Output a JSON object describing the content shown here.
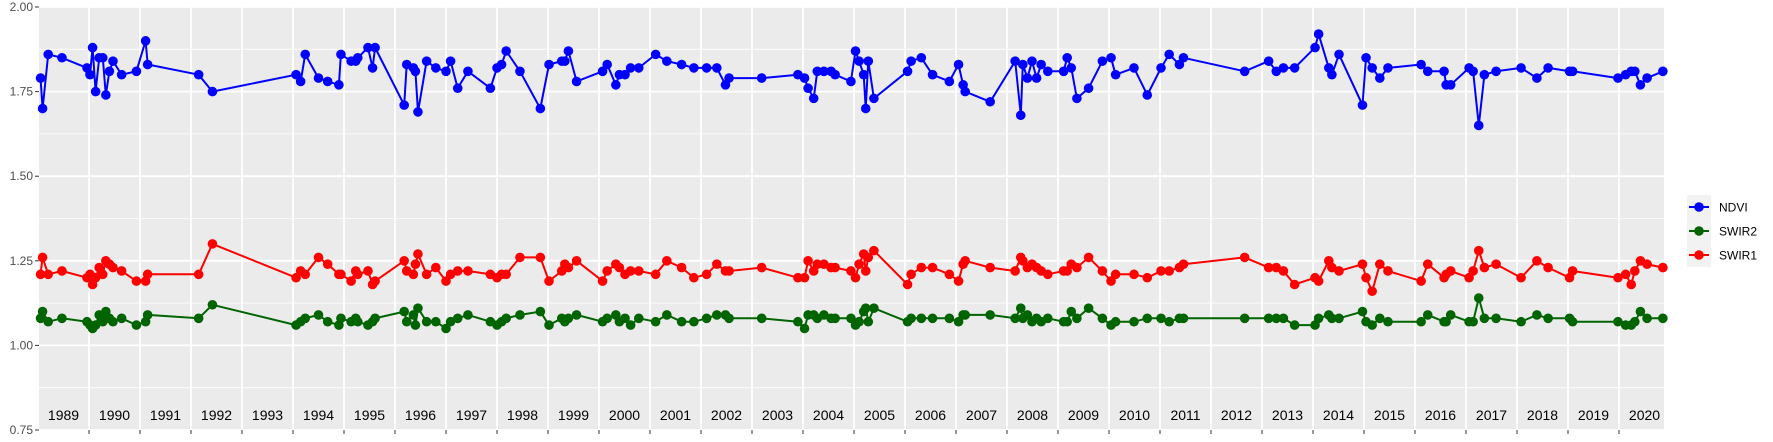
{
  "chart_data": {
    "type": "line",
    "title": "",
    "xlabel": "",
    "ylabel": "",
    "ylim": [
      0.75,
      2.0
    ],
    "xlim": [
      1989.02,
      2020.88
    ],
    "yticks": [
      "0.75",
      "1.00",
      "1.25",
      "1.50",
      "1.75",
      "2.00"
    ],
    "ytick_values": [
      0.75,
      1.0,
      1.25,
      1.5,
      1.75,
      2.0
    ],
    "year_labels": [
      "1989",
      "1990",
      "1991",
      "1992",
      "1993",
      "1994",
      "1995",
      "1996",
      "1997",
      "1998",
      "1999",
      "2000",
      "2001",
      "2002",
      "2003",
      "2004",
      "2005",
      "2006",
      "2007",
      "2008",
      "2009",
      "2010",
      "2011",
      "2012",
      "2013",
      "2014",
      "2015",
      "2016",
      "2017",
      "2018",
      "2019",
      "2020"
    ],
    "grid": true,
    "legend_position": "right",
    "series": [
      {
        "name": "NDVI",
        "color": "#0000ff",
        "column": 1
      },
      {
        "name": "SWIR2",
        "color": "#006400",
        "column": 2
      },
      {
        "name": "SWIR1",
        "color": "#ff0000",
        "column": 3
      }
    ],
    "columns": [
      "year",
      "NDVI",
      "SWIR2",
      "SWIR1"
    ],
    "points": [
      [
        1989.05,
        1.79,
        1.08,
        1.21
      ],
      [
        1989.09,
        1.7,
        1.1,
        1.26
      ],
      [
        1989.2,
        1.86,
        1.07,
        1.21
      ],
      [
        1989.47,
        1.85,
        1.08,
        1.22
      ],
      [
        1989.96,
        1.82,
        1.07,
        1.2
      ],
      [
        1990.02,
        1.8,
        1.06,
        1.21
      ],
      [
        1990.07,
        1.88,
        1.05,
        1.18
      ],
      [
        1990.13,
        1.75,
        1.06,
        1.2
      ],
      [
        1990.2,
        1.85,
        1.09,
        1.23
      ],
      [
        1990.27,
        1.85,
        1.07,
        1.21
      ],
      [
        1990.33,
        1.74,
        1.1,
        1.25
      ],
      [
        1990.4,
        1.81,
        1.08,
        1.24
      ],
      [
        1990.47,
        1.84,
        1.07,
        1.23
      ],
      [
        1990.64,
        1.8,
        1.08,
        1.22
      ],
      [
        1990.93,
        1.81,
        1.06,
        1.19
      ],
      [
        1991.11,
        1.9,
        1.07,
        1.19
      ],
      [
        1991.15,
        1.83,
        1.09,
        1.21
      ],
      [
        1992.15,
        1.8,
        1.08,
        1.21
      ],
      [
        1992.42,
        1.75,
        1.12,
        1.3
      ],
      [
        1994.06,
        1.8,
        1.06,
        1.2
      ],
      [
        1994.15,
        1.78,
        1.07,
        1.22
      ],
      [
        1994.24,
        1.86,
        1.08,
        1.21
      ],
      [
        1994.5,
        1.79,
        1.09,
        1.26
      ],
      [
        1994.68,
        1.78,
        1.07,
        1.24
      ],
      [
        1994.9,
        1.77,
        1.06,
        1.21
      ],
      [
        1994.94,
        1.86,
        1.08,
        1.21
      ],
      [
        1995.14,
        1.84,
        1.07,
        1.19
      ],
      [
        1995.23,
        1.84,
        1.08,
        1.22
      ],
      [
        1995.27,
        1.85,
        1.07,
        1.21
      ],
      [
        1995.47,
        1.88,
        1.06,
        1.22
      ],
      [
        1995.56,
        1.82,
        1.07,
        1.18
      ],
      [
        1995.61,
        1.88,
        1.08,
        1.19
      ],
      [
        1996.18,
        1.71,
        1.1,
        1.25
      ],
      [
        1996.23,
        1.83,
        1.07,
        1.22
      ],
      [
        1996.36,
        1.82,
        1.09,
        1.21
      ],
      [
        1996.4,
        1.81,
        1.06,
        1.24
      ],
      [
        1996.45,
        1.69,
        1.11,
        1.27
      ],
      [
        1996.62,
        1.84,
        1.07,
        1.21
      ],
      [
        1996.8,
        1.82,
        1.07,
        1.23
      ],
      [
        1997.0,
        1.81,
        1.05,
        1.19
      ],
      [
        1997.09,
        1.84,
        1.07,
        1.21
      ],
      [
        1997.23,
        1.76,
        1.08,
        1.22
      ],
      [
        1997.43,
        1.81,
        1.09,
        1.22
      ],
      [
        1997.87,
        1.76,
        1.07,
        1.21
      ],
      [
        1998.0,
        1.82,
        1.06,
        1.2
      ],
      [
        1998.09,
        1.83,
        1.07,
        1.21
      ],
      [
        1998.18,
        1.87,
        1.08,
        1.21
      ],
      [
        1998.45,
        1.81,
        1.09,
        1.26
      ],
      [
        1998.85,
        1.7,
        1.1,
        1.26
      ],
      [
        1999.02,
        1.83,
        1.06,
        1.19
      ],
      [
        1999.27,
        1.84,
        1.08,
        1.22
      ],
      [
        1999.33,
        1.84,
        1.07,
        1.24
      ],
      [
        1999.4,
        1.87,
        1.08,
        1.23
      ],
      [
        1999.56,
        1.78,
        1.09,
        1.25
      ],
      [
        2000.07,
        1.81,
        1.07,
        1.19
      ],
      [
        2000.16,
        1.83,
        1.08,
        1.22
      ],
      [
        2000.33,
        1.77,
        1.09,
        1.24
      ],
      [
        2000.4,
        1.8,
        1.07,
        1.23
      ],
      [
        2000.51,
        1.8,
        1.08,
        1.21
      ],
      [
        2000.62,
        1.82,
        1.06,
        1.22
      ],
      [
        2000.78,
        1.82,
        1.08,
        1.22
      ],
      [
        2001.11,
        1.86,
        1.07,
        1.21
      ],
      [
        2001.33,
        1.84,
        1.09,
        1.25
      ],
      [
        2001.62,
        1.83,
        1.07,
        1.23
      ],
      [
        2001.86,
        1.82,
        1.07,
        1.2
      ],
      [
        2002.11,
        1.82,
        1.08,
        1.21
      ],
      [
        2002.31,
        1.82,
        1.09,
        1.24
      ],
      [
        2002.48,
        1.77,
        1.09,
        1.22
      ],
      [
        2002.55,
        1.79,
        1.08,
        1.22
      ],
      [
        2003.19,
        1.79,
        1.08,
        1.23
      ],
      [
        2003.9,
        1.8,
        1.07,
        1.2
      ],
      [
        2004.03,
        1.79,
        1.05,
        1.2
      ],
      [
        2004.1,
        1.76,
        1.09,
        1.25
      ],
      [
        2004.21,
        1.73,
        1.09,
        1.22
      ],
      [
        2004.28,
        1.81,
        1.08,
        1.24
      ],
      [
        2004.41,
        1.81,
        1.09,
        1.24
      ],
      [
        2004.55,
        1.81,
        1.08,
        1.23
      ],
      [
        2004.63,
        1.8,
        1.08,
        1.23
      ],
      [
        2004.94,
        1.78,
        1.08,
        1.22
      ],
      [
        2005.03,
        1.87,
        1.06,
        1.2
      ],
      [
        2005.1,
        1.84,
        1.07,
        1.24
      ],
      [
        2005.19,
        1.8,
        1.1,
        1.27
      ],
      [
        2005.23,
        1.7,
        1.11,
        1.22
      ],
      [
        2005.28,
        1.84,
        1.07,
        1.26
      ],
      [
        2005.39,
        1.73,
        1.11,
        1.28
      ],
      [
        2006.05,
        1.81,
        1.07,
        1.18
      ],
      [
        2006.12,
        1.84,
        1.08,
        1.21
      ],
      [
        2006.32,
        1.85,
        1.08,
        1.23
      ],
      [
        2006.54,
        1.8,
        1.08,
        1.23
      ],
      [
        2006.87,
        1.78,
        1.08,
        1.21
      ],
      [
        2007.05,
        1.83,
        1.07,
        1.19
      ],
      [
        2007.14,
        1.77,
        1.09,
        1.24
      ],
      [
        2007.18,
        1.75,
        1.09,
        1.25
      ],
      [
        2007.67,
        1.72,
        1.09,
        1.23
      ],
      [
        2008.16,
        1.84,
        1.08,
        1.22
      ],
      [
        2008.27,
        1.68,
        1.11,
        1.26
      ],
      [
        2008.31,
        1.83,
        1.08,
        1.25
      ],
      [
        2008.4,
        1.79,
        1.09,
        1.23
      ],
      [
        2008.49,
        1.84,
        1.07,
        1.24
      ],
      [
        2008.58,
        1.79,
        1.08,
        1.23
      ],
      [
        2008.67,
        1.83,
        1.07,
        1.22
      ],
      [
        2008.8,
        1.81,
        1.08,
        1.21
      ],
      [
        2009.11,
        1.81,
        1.07,
        1.22
      ],
      [
        2009.18,
        1.85,
        1.07,
        1.22
      ],
      [
        2009.26,
        1.82,
        1.1,
        1.24
      ],
      [
        2009.37,
        1.73,
        1.08,
        1.23
      ],
      [
        2009.6,
        1.76,
        1.11,
        1.26
      ],
      [
        2009.87,
        1.84,
        1.08,
        1.22
      ],
      [
        2010.04,
        1.85,
        1.06,
        1.19
      ],
      [
        2010.13,
        1.8,
        1.07,
        1.21
      ],
      [
        2010.49,
        1.82,
        1.07,
        1.21
      ],
      [
        2010.75,
        1.74,
        1.08,
        1.2
      ],
      [
        2011.02,
        1.82,
        1.08,
        1.22
      ],
      [
        2011.18,
        1.86,
        1.07,
        1.22
      ],
      [
        2011.38,
        1.83,
        1.08,
        1.23
      ],
      [
        2011.46,
        1.85,
        1.08,
        1.24
      ],
      [
        2012.66,
        1.81,
        1.08,
        1.26
      ],
      [
        2013.13,
        1.84,
        1.08,
        1.23
      ],
      [
        2013.28,
        1.81,
        1.08,
        1.23
      ],
      [
        2013.42,
        1.82,
        1.08,
        1.22
      ],
      [
        2013.64,
        1.82,
        1.06,
        1.18
      ],
      [
        2014.04,
        1.88,
        1.06,
        1.2
      ],
      [
        2014.11,
        1.92,
        1.08,
        1.19
      ],
      [
        2014.31,
        1.82,
        1.09,
        1.25
      ],
      [
        2014.37,
        1.8,
        1.08,
        1.23
      ],
      [
        2014.51,
        1.86,
        1.08,
        1.22
      ],
      [
        2014.97,
        1.71,
        1.1,
        1.24
      ],
      [
        2015.04,
        1.85,
        1.07,
        1.2
      ],
      [
        2015.16,
        1.82,
        1.06,
        1.16
      ],
      [
        2015.31,
        1.79,
        1.08,
        1.24
      ],
      [
        2015.47,
        1.82,
        1.07,
        1.22
      ],
      [
        2016.12,
        1.83,
        1.07,
        1.19
      ],
      [
        2016.25,
        1.81,
        1.09,
        1.24
      ],
      [
        2016.57,
        1.81,
        1.07,
        1.2
      ],
      [
        2016.61,
        1.77,
        1.07,
        1.21
      ],
      [
        2016.7,
        1.77,
        1.09,
        1.22
      ],
      [
        2017.06,
        1.82,
        1.07,
        1.2
      ],
      [
        2017.14,
        1.81,
        1.07,
        1.22
      ],
      [
        2017.25,
        1.65,
        1.14,
        1.28
      ],
      [
        2017.36,
        1.8,
        1.08,
        1.23
      ],
      [
        2017.59,
        1.81,
        1.08,
        1.24
      ],
      [
        2018.08,
        1.82,
        1.07,
        1.2
      ],
      [
        2018.39,
        1.79,
        1.09,
        1.25
      ],
      [
        2018.61,
        1.82,
        1.08,
        1.23
      ],
      [
        2019.03,
        1.81,
        1.08,
        1.2
      ],
      [
        2019.09,
        1.81,
        1.07,
        1.22
      ],
      [
        2019.98,
        1.79,
        1.07,
        1.2
      ],
      [
        2020.13,
        1.8,
        1.06,
        1.21
      ],
      [
        2020.24,
        1.81,
        1.06,
        1.18
      ],
      [
        2020.31,
        1.81,
        1.07,
        1.22
      ],
      [
        2020.42,
        1.77,
        1.1,
        1.25
      ],
      [
        2020.55,
        1.79,
        1.08,
        1.24
      ],
      [
        2020.86,
        1.81,
        1.08,
        1.23
      ]
    ]
  }
}
